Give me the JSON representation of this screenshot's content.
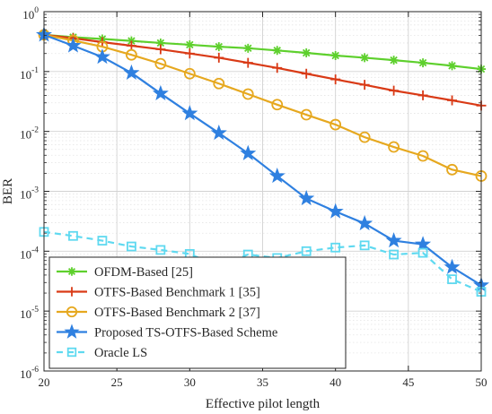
{
  "chart_data": {
    "type": "line",
    "xlabel": "Effective pilot length",
    "ylabel": "BER",
    "xlim": [
      20,
      50
    ],
    "ylim": [
      1e-06,
      1
    ],
    "yscale": "log",
    "grid": true,
    "legend_position": "bottom-left",
    "x_ticks": [
      20,
      25,
      30,
      35,
      40,
      45,
      50
    ],
    "y_ticks": [
      {
        "value": 1,
        "base": "10",
        "exp": "0"
      },
      {
        "value": 0.1,
        "base": "10",
        "exp": "-1"
      },
      {
        "value": 0.01,
        "base": "10",
        "exp": "-2"
      },
      {
        "value": 0.001,
        "base": "10",
        "exp": "-3"
      },
      {
        "value": 0.0001,
        "base": "10",
        "exp": "-4"
      },
      {
        "value": 1e-05,
        "base": "10",
        "exp": "-5"
      },
      {
        "value": 1e-06,
        "base": "10",
        "exp": "-6"
      }
    ],
    "series": [
      {
        "name": "OFDM-Based [25]",
        "color": "#5ed02d",
        "marker": "asterisk",
        "dashed": false,
        "x": [
          20,
          22,
          24,
          26,
          28,
          30,
          32,
          34,
          36,
          38,
          40,
          42,
          44,
          46,
          48,
          50
        ],
        "y": [
          0.41,
          0.375,
          0.35,
          0.325,
          0.3,
          0.28,
          0.26,
          0.245,
          0.225,
          0.205,
          0.185,
          0.17,
          0.155,
          0.14,
          0.125,
          0.11
        ]
      },
      {
        "name": "OTFS-Based Benchmark 1 [35]",
        "color": "#d93a16",
        "marker": "plus",
        "dashed": false,
        "x": [
          20,
          22,
          24,
          26,
          28,
          30,
          32,
          34,
          36,
          38,
          40,
          42,
          44,
          46,
          48,
          50
        ],
        "y": [
          0.41,
          0.36,
          0.31,
          0.27,
          0.235,
          0.2,
          0.17,
          0.14,
          0.115,
          0.092,
          0.074,
          0.06,
          0.048,
          0.04,
          0.033,
          0.027
        ]
      },
      {
        "name": "OTFS-Based Benchmark 2 [37]",
        "color": "#e6a81f",
        "marker": "circle",
        "dashed": false,
        "x": [
          20,
          22,
          24,
          26,
          28,
          30,
          32,
          34,
          36,
          38,
          40,
          42,
          44,
          46,
          48,
          50
        ],
        "y": [
          0.41,
          0.33,
          0.26,
          0.19,
          0.135,
          0.092,
          0.063,
          0.042,
          0.028,
          0.019,
          0.013,
          0.008,
          0.0055,
          0.0039,
          0.0023,
          0.0018
        ]
      },
      {
        "name": "Proposed TS-OTFS-Based Scheme",
        "color": "#2f80e0",
        "marker": "star",
        "dashed": false,
        "x": [
          20,
          22,
          24,
          26,
          28,
          30,
          32,
          34,
          36,
          38,
          40,
          42,
          44,
          46,
          48,
          50
        ],
        "y": [
          0.41,
          0.27,
          0.175,
          0.095,
          0.043,
          0.02,
          0.0094,
          0.0043,
          0.0018,
          0.00076,
          0.00046,
          0.00029,
          0.00015,
          0.00013,
          5.4e-05,
          2.7e-05
        ]
      },
      {
        "name": "Oracle LS",
        "color": "#5fd9f0",
        "marker": "square",
        "dashed": true,
        "x": [
          20,
          22,
          24,
          26,
          28,
          30,
          32,
          34,
          36,
          38,
          40,
          42,
          44,
          46,
          48,
          50
        ],
        "y": [
          0.00021,
          0.00018,
          0.00015,
          0.00012,
          0.000105,
          9e-05,
          5.6e-05,
          8.8e-05,
          7.7e-05,
          0.0001,
          0.000115,
          0.000125,
          8.8e-05,
          9.4e-05,
          3.4e-05,
          2.1e-05
        ]
      }
    ]
  }
}
